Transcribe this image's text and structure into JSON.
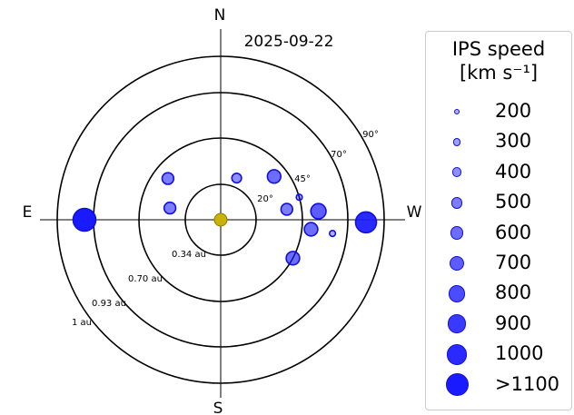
{
  "chart_data": {
    "type": "scatter",
    "projection": "polar",
    "date": "2025-09-22",
    "compass": {
      "north": "N",
      "south": "S",
      "east": "E",
      "west": "W"
    },
    "ring_labels": [
      "0.34 au",
      "0.70 au",
      "0.93 au",
      "1 au"
    ],
    "angle_labels": [
      "20°",
      "45°",
      "70°",
      "90°"
    ],
    "center_marker_color": "#c8b400",
    "marker_color": "#1a1aff",
    "legend": {
      "title": "IPS speed",
      "unit": "[km s⁻¹]",
      "entries": [
        "200",
        "300",
        "400",
        "500",
        "600",
        "700",
        "800",
        "900",
        "1000",
        ">1100"
      ]
    },
    "points": [
      {
        "elongation_deg": 75,
        "pa_deg": 90,
        "speed": 1100
      },
      {
        "elongation_deg": 80,
        "pa_deg": 269,
        "speed": 1000
      },
      {
        "elongation_deg": 62,
        "pa_deg": 263,
        "speed": 200
      },
      {
        "elongation_deg": 54,
        "pa_deg": 275,
        "speed": 700
      },
      {
        "elongation_deg": 50,
        "pa_deg": 264,
        "speed": 600
      },
      {
        "elongation_deg": 45,
        "pa_deg": 286,
        "speed": 200
      },
      {
        "elongation_deg": 37,
        "pa_deg": 279,
        "speed": 500
      },
      {
        "elongation_deg": 38,
        "pa_deg": 309,
        "speed": 600
      },
      {
        "elongation_deg": 25,
        "pa_deg": 339,
        "speed": 400
      },
      {
        "elongation_deg": 37,
        "pa_deg": 52,
        "speed": 500
      },
      {
        "elongation_deg": 29,
        "pa_deg": 77,
        "speed": 500
      },
      {
        "elongation_deg": 45,
        "pa_deg": 242,
        "speed": 600
      }
    ]
  }
}
